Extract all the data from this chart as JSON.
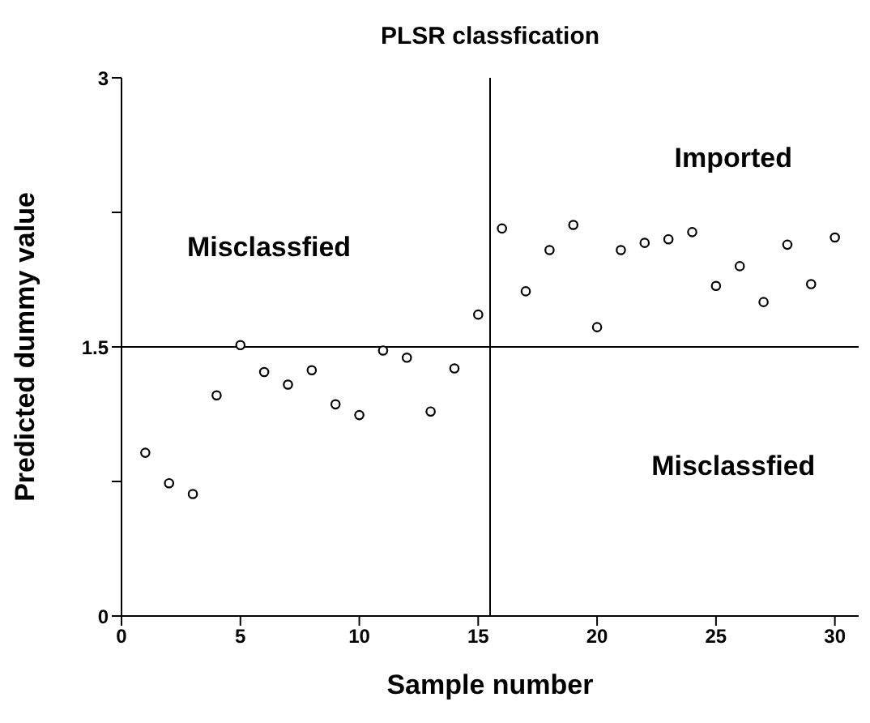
{
  "chart_data": {
    "type": "scatter",
    "title": "PLSR classfication",
    "xlabel": "Sample number",
    "ylabel": "Predicted dummy value",
    "x": [
      1,
      2,
      3,
      4,
      5,
      6,
      7,
      8,
      9,
      10,
      11,
      12,
      13,
      14,
      15,
      16,
      17,
      18,
      19,
      20,
      21,
      22,
      23,
      24,
      25,
      26,
      27,
      28,
      29,
      30
    ],
    "series": [
      {
        "color": "#000000",
        "values": [
          0.91,
          0.74,
          0.68,
          1.23,
          1.51,
          1.36,
          1.29,
          1.37,
          1.18,
          1.12,
          1.48,
          1.44,
          1.14,
          1.38,
          1.68,
          2.16,
          1.81,
          2.04,
          2.18,
          1.61,
          2.04,
          2.08,
          2.1,
          2.14,
          1.84,
          1.95,
          1.75,
          2.07,
          1.85,
          2.11
        ]
      }
    ],
    "marker": "circle",
    "xlim": [
      0,
      31
    ],
    "xticks": [
      0,
      5,
      10,
      15,
      20,
      25,
      30
    ],
    "ylim": [
      0,
      3
    ],
    "yticks": [
      0,
      {
        "value": 0.75,
        "label": null
      },
      1.5,
      {
        "value": 2.25,
        "label": null
      },
      3
    ],
    "ref_lines": [
      {
        "axis": "y",
        "value": 1.5,
        "color": "#000000"
      },
      {
        "axis": "x",
        "value": 15.5,
        "color": "#000000"
      }
    ],
    "annotations": [
      "Misclassfied",
      "Imported",
      "Misclassfied"
    ]
  }
}
